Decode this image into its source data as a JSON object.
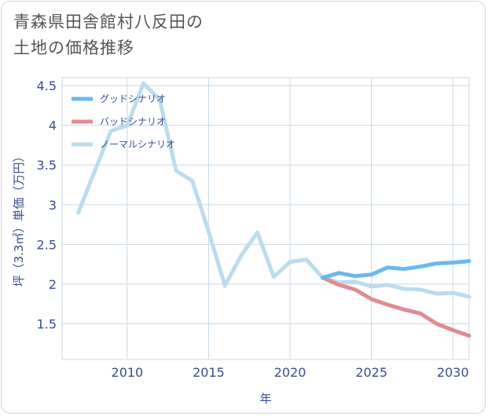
{
  "title_lines": [
    "青森県田舎館村八反田の",
    "土地の価格推移"
  ],
  "chart_data": {
    "type": "line",
    "xlabel": "年",
    "ylabel": "坪（3.3㎡）単価（万円）",
    "xlim": [
      2006,
      2031
    ],
    "ylim": [
      1.05,
      4.6
    ],
    "x_ticks": [
      2010,
      2015,
      2020,
      2025,
      2030
    ],
    "y_ticks": [
      1.5,
      2,
      2.5,
      3,
      3.5,
      4,
      4.5
    ],
    "grid": true,
    "legend_position": "top-left",
    "series": [
      {
        "name": "グッドシナリオ",
        "color": "#6cb8ee",
        "points": [
          [
            2022,
            2.08
          ],
          [
            2023,
            2.14
          ],
          [
            2024,
            2.1
          ],
          [
            2025,
            2.12
          ],
          [
            2026,
            2.21
          ],
          [
            2027,
            2.19
          ],
          [
            2028,
            2.22
          ],
          [
            2029,
            2.26
          ],
          [
            2030,
            2.27
          ],
          [
            2031,
            2.29
          ]
        ]
      },
      {
        "name": "バッドシナリオ",
        "color": "#de8c92",
        "points": [
          [
            2022,
            2.08
          ],
          [
            2023,
            1.99
          ],
          [
            2024,
            1.93
          ],
          [
            2025,
            1.81
          ],
          [
            2026,
            1.74
          ],
          [
            2027,
            1.68
          ],
          [
            2028,
            1.63
          ],
          [
            2029,
            1.5
          ],
          [
            2030,
            1.42
          ],
          [
            2031,
            1.35
          ]
        ]
      },
      {
        "name": "ノーマルシナリオ",
        "color": "#bcdcec",
        "points": [
          [
            2007,
            2.9
          ],
          [
            2008,
            3.42
          ],
          [
            2009,
            3.93
          ],
          [
            2010,
            4.0
          ],
          [
            2011,
            4.53
          ],
          [
            2012,
            4.32
          ],
          [
            2013,
            3.43
          ],
          [
            2014,
            3.3
          ],
          [
            2015,
            2.66
          ],
          [
            2016,
            1.98
          ],
          [
            2017,
            2.36
          ],
          [
            2018,
            2.65
          ],
          [
            2019,
            2.09
          ],
          [
            2020,
            2.28
          ],
          [
            2021,
            2.31
          ],
          [
            2022,
            2.08
          ],
          [
            2023,
            2.02
          ],
          [
            2024,
            2.03
          ],
          [
            2025,
            1.97
          ],
          [
            2026,
            1.99
          ],
          [
            2027,
            1.94
          ],
          [
            2028,
            1.93
          ],
          [
            2029,
            1.88
          ],
          [
            2030,
            1.89
          ],
          [
            2031,
            1.84
          ]
        ]
      }
    ]
  }
}
